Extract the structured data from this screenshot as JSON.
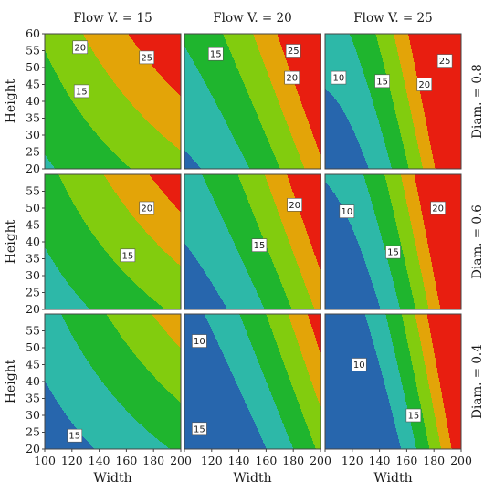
{
  "chart_data": {
    "type": "heatmap",
    "subtype": "filled-contour-grid",
    "x_label": "Width",
    "y_label": "Height",
    "x_ticks": [
      100,
      120,
      140,
      160,
      180,
      200
    ],
    "x_range": [
      100,
      200
    ],
    "y_range": [
      20,
      60
    ],
    "y_ticks_top_row": [
      20,
      25,
      30,
      35,
      40,
      45,
      50,
      55,
      60
    ],
    "y_ticks_other_rows": [
      20,
      25,
      30,
      35,
      40,
      45,
      50,
      55
    ],
    "columns": [
      {
        "title": "Flow V. = 15",
        "flow": 15
      },
      {
        "title": "Flow V. = 20",
        "flow": 20
      },
      {
        "title": "Flow V. = 25",
        "flow": 25
      }
    ],
    "rows": [
      {
        "title": "Diam. = 0.8",
        "diam": 0.8
      },
      {
        "title": "Diam. = 0.6",
        "diam": 0.6
      },
      {
        "title": "Diam. = 0.4",
        "diam": 0.4
      }
    ],
    "levels": [
      5,
      10,
      15,
      20,
      25,
      30
    ],
    "level_colors": [
      "#2766ad",
      "#2db8a8",
      "#1fb52e",
      "#82cc0e",
      "#e3a408",
      "#e81e10"
    ],
    "contour_labels": [
      [
        [
          {
            "text": "20",
            "x": 126,
            "y": 56
          },
          {
            "text": "25",
            "x": 175,
            "y": 53
          },
          {
            "text": "15",
            "x": 127,
            "y": 43
          }
        ],
        [
          {
            "text": "15",
            "x": 123,
            "y": 54
          },
          {
            "text": "25",
            "x": 180,
            "y": 55
          },
          {
            "text": "20",
            "x": 179,
            "y": 47
          }
        ],
        [
          {
            "text": "10",
            "x": 110,
            "y": 47
          },
          {
            "text": "15",
            "x": 142,
            "y": 46
          },
          {
            "text": "25",
            "x": 188,
            "y": 52
          },
          {
            "text": "20",
            "x": 173,
            "y": 45
          }
        ]
      ],
      [
        [
          {
            "text": "20",
            "x": 175,
            "y": 50
          },
          {
            "text": "15",
            "x": 161,
            "y": 36
          }
        ],
        [
          {
            "text": "20",
            "x": 181,
            "y": 51
          },
          {
            "text": "15",
            "x": 155,
            "y": 39
          }
        ],
        [
          {
            "text": "10",
            "x": 116,
            "y": 49
          },
          {
            "text": "20",
            "x": 183,
            "y": 50
          },
          {
            "text": "15",
            "x": 150,
            "y": 37
          }
        ]
      ],
      [
        [
          {
            "text": "15",
            "x": 122,
            "y": 24
          }
        ],
        [
          {
            "text": "10",
            "x": 111,
            "y": 52
          },
          {
            "text": "15",
            "x": 111,
            "y": 26
          }
        ],
        [
          {
            "text": "10",
            "x": 125,
            "y": 45
          },
          {
            "text": "15",
            "x": 165,
            "y": 30
          }
        ]
      ]
    ]
  }
}
